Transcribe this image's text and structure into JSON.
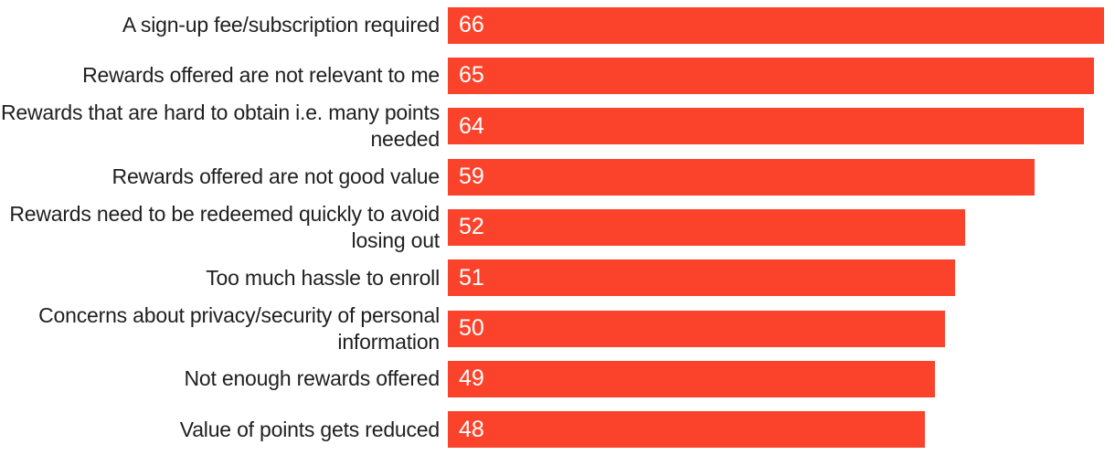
{
  "chart_data": {
    "type": "bar",
    "orientation": "horizontal",
    "categories": [
      "A sign-up fee/subscription required",
      "Rewards offered are not relevant to me",
      "Rewards that are hard to obtain i.e. many points needed",
      "Rewards offered are not good value",
      "Rewards need to be redeemed quickly to avoid losing out",
      "Too much hassle to enroll",
      "Concerns about privacy/security of personal information",
      "Not enough rewards offered",
      "Value of points gets reduced"
    ],
    "values": [
      66,
      65,
      64,
      59,
      52,
      51,
      50,
      49,
      48
    ],
    "value_labels": [
      "66",
      "65",
      "64",
      "59",
      "52",
      "51",
      "50",
      "49",
      "48"
    ],
    "value_label_position": "inside-left",
    "bar_color": "#FB432C",
    "value_label_color": "#FFFFFF",
    "category_label_color": "#1F1F1F",
    "background_color": "#FFFFFF",
    "xlim": [
      0,
      67
    ],
    "grid": false,
    "legend": false,
    "axes_visible": false
  }
}
